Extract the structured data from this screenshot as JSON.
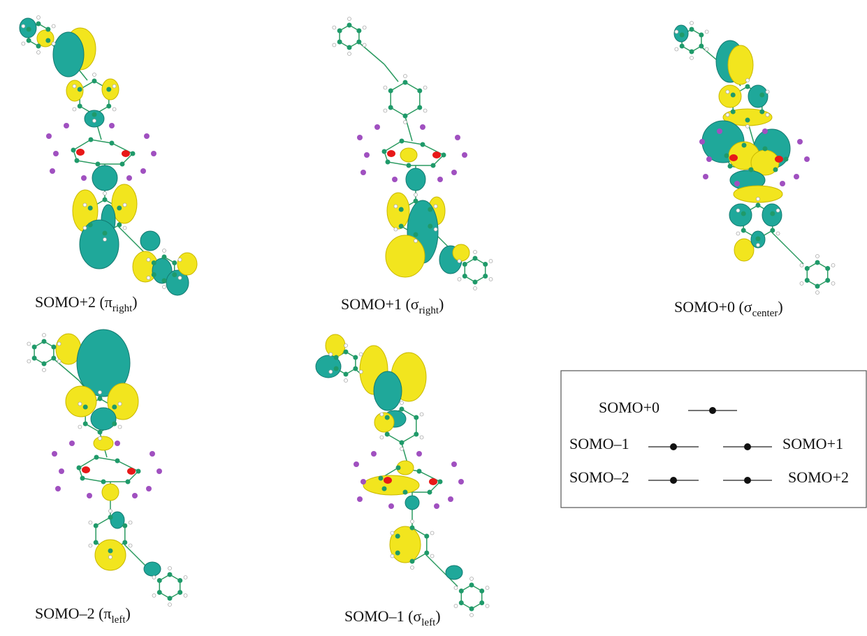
{
  "panels": [
    {
      "label_main": "SOMO+2 (π",
      "label_sub": "right",
      "label_end": ")"
    },
    {
      "label_main": "SOMO+1 (σ",
      "label_sub": "right",
      "label_end": ")"
    },
    {
      "label_main": "SOMO+0 (σ",
      "label_sub": "center",
      "label_end": ")"
    },
    {
      "label_main": "SOMO–2 (π",
      "label_sub": "left",
      "label_end": ")"
    },
    {
      "label_main": "SOMO–1 (σ",
      "label_sub": "left",
      "label_end": ")"
    }
  ],
  "legend": {
    "center": "SOMO+0",
    "left": [
      "SOMO–1",
      "SOMO–2"
    ],
    "right": [
      "SOMO+1",
      "SOMO+2"
    ]
  }
}
